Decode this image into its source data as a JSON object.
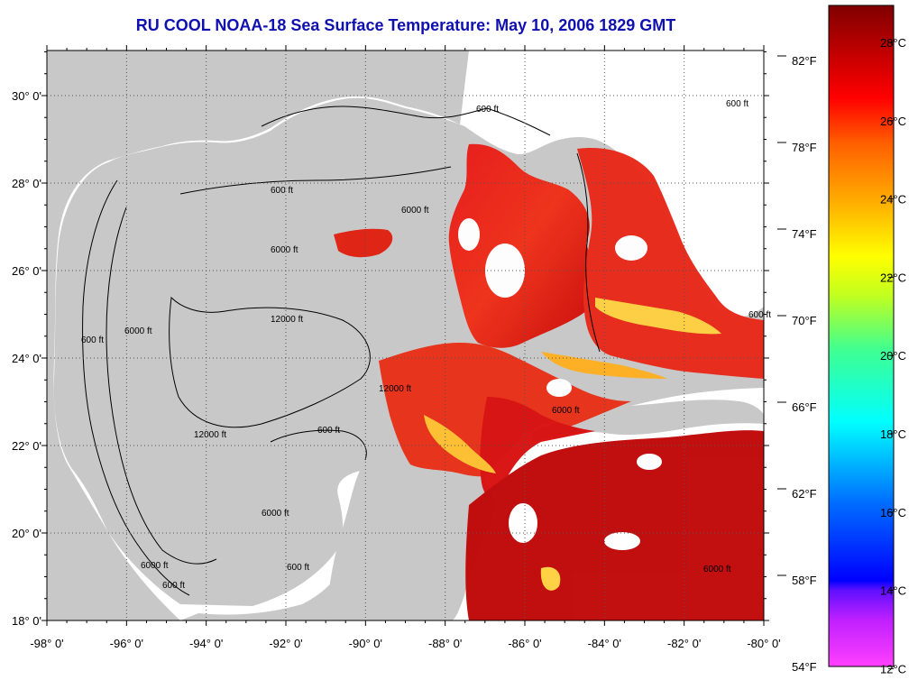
{
  "title": "RU COOL  NOAA-18  Sea Surface Temperature:  May 10, 2006 1829 GMT",
  "map": {
    "lon_labels": [
      "-98° 0'",
      "-96° 0'",
      "-94° 0'",
      "-92° 0'",
      "-90° 0'",
      "-88° 0'",
      "-86° 0'",
      "-84° 0'",
      "-82° 0'",
      "-80° 0'"
    ],
    "lat_labels": [
      "30° 0'",
      "28° 0'",
      "26° 0'",
      "24° 0'",
      "22° 0'",
      "20° 0'",
      "18° 0'"
    ],
    "fahrenheit_labels": [
      "82°F",
      "78°F",
      "74°F",
      "70°F",
      "66°F",
      "62°F",
      "58°F"
    ],
    "contour_labels": [
      "600 ft",
      "600 ft",
      "6000 ft",
      "6000 ft",
      "12000 ft",
      "12000 ft",
      "600 ft",
      "600 ft",
      "6000 ft",
      "6000 ft",
      "600 ft",
      "600 ft",
      "6000 ft",
      "600 ft",
      "6000 ft",
      "12000 ft",
      "6000 ft",
      "600 ft"
    ],
    "colors": {
      "land": "#c8c8c8",
      "ocean_no_data": "#ffffff",
      "sst_warm": "#e01010",
      "sst_hot": "#b40000"
    }
  },
  "colorbar": {
    "celsius_labels": [
      "28°C",
      "26°C",
      "24°C",
      "22°C",
      "20°C",
      "18°C",
      "16°C",
      "14°C",
      "12°C"
    ],
    "fahrenheit_bottom": "54°F",
    "colors": [
      "#ff40ff",
      "#6010ff",
      "#0000ff",
      "#0090ff",
      "#00ffff",
      "#40ff90",
      "#c0ff20",
      "#ffff00",
      "#ffb000",
      "#ff6000",
      "#ff0000",
      "#b00000",
      "#800000"
    ]
  }
}
